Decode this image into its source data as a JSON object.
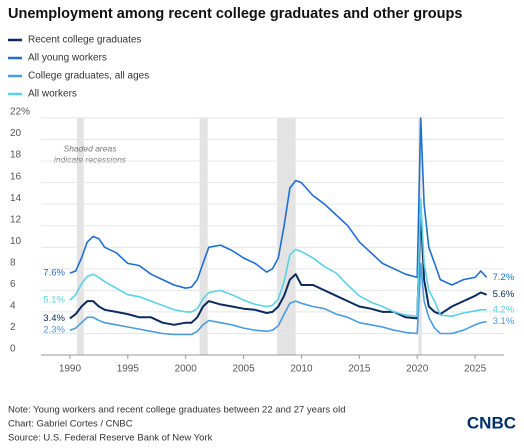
{
  "chart_data": {
    "type": "line",
    "title": "Unemployment among recent college graduates and other groups",
    "x": [
      1990,
      1990.5,
      1991,
      1991.5,
      1992,
      1992.5,
      1993,
      1994,
      1995,
      1996,
      1997,
      1998,
      1999,
      2000,
      2000.5,
      2001,
      2001.5,
      2002,
      2003,
      2004,
      2005,
      2006,
      2007,
      2007.5,
      2008,
      2008.5,
      2009,
      2009.5,
      2010,
      2011,
      2012,
      2013,
      2014,
      2015,
      2016,
      2017,
      2018,
      2019,
      2020,
      2020.3,
      2020.6,
      2021,
      2021.5,
      2022,
      2023,
      2024,
      2025,
      2025.5,
      2026
    ],
    "series": [
      {
        "name": "Recent college graduates",
        "color": "#0b2a5e",
        "start_label": "3.4%",
        "end_label": "5.6%",
        "values": [
          3.4,
          3.8,
          4.5,
          5,
          5,
          4.5,
          4.2,
          4,
          3.8,
          3.5,
          3.5,
          3,
          2.8,
          3,
          3,
          3.5,
          4.5,
          5,
          4.7,
          4.5,
          4.3,
          4.2,
          3.9,
          4,
          4.5,
          5.5,
          7,
          7.5,
          6.5,
          6.5,
          6,
          5.5,
          5,
          4.5,
          4.3,
          4,
          4,
          3.5,
          3.4,
          13.5,
          7,
          4.5,
          4,
          3.8,
          4.5,
          5,
          5.5,
          5.8,
          5.6
        ]
      },
      {
        "name": "All young workers",
        "color": "#1f6fd1",
        "start_label": "7.6%",
        "end_label": "7.2%",
        "values": [
          7.6,
          7.8,
          9,
          10.5,
          11,
          10.8,
          10,
          9.5,
          8.5,
          8.3,
          7.5,
          7,
          6.5,
          6.2,
          6.3,
          7,
          8.5,
          10,
          10.2,
          9.7,
          9,
          8.5,
          7.7,
          8,
          9,
          12,
          15.5,
          16.2,
          16,
          14.8,
          14,
          13,
          12,
          10.5,
          9.5,
          8.5,
          8,
          7.5,
          7.2,
          22,
          14,
          10,
          8.5,
          7,
          6.5,
          7,
          7.2,
          7.8,
          7.2
        ]
      },
      {
        "name": "College graduates, all ages",
        "color": "#4a9be0",
        "start_label": "2.3%",
        "end_label": "3.1%",
        "values": [
          2.3,
          2.5,
          3,
          3.5,
          3.5,
          3.2,
          3,
          2.8,
          2.6,
          2.4,
          2.2,
          2,
          1.9,
          1.9,
          1.9,
          2.2,
          2.8,
          3.2,
          3,
          2.8,
          2.5,
          2.3,
          2.2,
          2.3,
          2.7,
          3.8,
          4.8,
          5,
          4.8,
          4.5,
          4.3,
          3.8,
          3.5,
          3,
          2.8,
          2.6,
          2.3,
          2.1,
          2,
          8.5,
          5,
          3.5,
          2.5,
          2,
          2,
          2.3,
          2.8,
          3,
          3.1
        ]
      },
      {
        "name": "All workers",
        "color": "#5ad2e6",
        "start_label": "5.1%",
        "end_label": "4.2%",
        "values": [
          5.1,
          5.6,
          6.6,
          7.3,
          7.5,
          7.2,
          6.8,
          6.2,
          5.6,
          5.4,
          5,
          4.6,
          4.2,
          4,
          4,
          4.3,
          5.2,
          5.8,
          6,
          5.6,
          5.1,
          4.7,
          4.5,
          4.6,
          5.2,
          6.8,
          9.3,
          9.8,
          9.6,
          9,
          8.2,
          7.6,
          6.5,
          5.5,
          4.9,
          4.5,
          4,
          3.7,
          3.6,
          14.5,
          8.5,
          6,
          5,
          3.7,
          3.6,
          3.9,
          4.1,
          4.2,
          4.2
        ]
      }
    ],
    "xlim": [
      1987.5,
      2027.5
    ],
    "xticks": [
      1990,
      1995,
      2000,
      2005,
      2010,
      2015,
      2020,
      2025
    ],
    "ylim": [
      0,
      22
    ],
    "yticks": [
      0,
      2,
      4,
      6,
      8,
      10,
      12,
      14,
      16,
      18,
      20,
      {
        "value": 22,
        "label": "22%"
      }
    ],
    "grid": true,
    "recessions": [
      [
        1990.6,
        1991.2
      ],
      [
        2001.2,
        2001.9
      ],
      [
        2007.9,
        2009.5
      ],
      [
        2020.1,
        2020.4
      ]
    ],
    "recession_note": [
      "Shaded areas",
      "indicate recessions"
    ],
    "note": "Note: Young workers and recent college graduates between 22 and 27 years old",
    "credit": "Chart: Gabriel Cortes / CNBC",
    "source": "Source: U.S. Federal Reserve Bank of New York",
    "logo": "CNBC"
  }
}
